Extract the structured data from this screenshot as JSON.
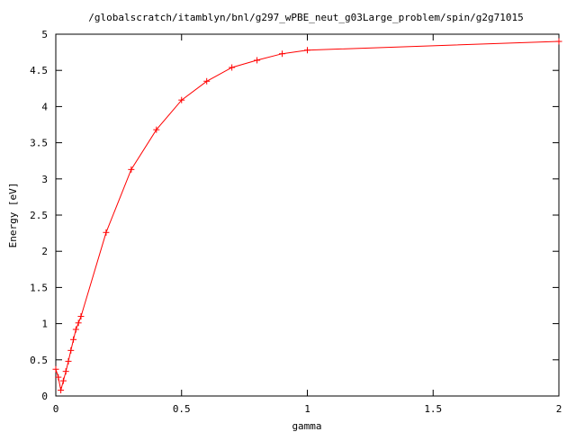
{
  "chart_data": {
    "type": "line",
    "title": "/globalscratch/itamblyn/bnl/g297_wPBE_neut_g03Large_problem/spin/g2g71015",
    "xlabel": "gamma",
    "ylabel": "Energy [eV]",
    "xlim": [
      0,
      2
    ],
    "ylim": [
      0,
      5
    ],
    "x_ticks": [
      0,
      0.5,
      1,
      1.5,
      2
    ],
    "x_tick_labels": [
      "0",
      "0.5",
      "1",
      "1.5",
      "2"
    ],
    "y_ticks": [
      0,
      0.5,
      1,
      1.5,
      2,
      2.5,
      3,
      3.5,
      4,
      4.5,
      5
    ],
    "y_tick_labels": [
      "0",
      "0.5",
      "1",
      "1.5",
      "2",
      "2.5",
      "3",
      "3.5",
      "4",
      "4.5",
      "5"
    ],
    "grid": false,
    "legend": "none",
    "series": [
      {
        "color": "#ff0000",
        "marker": "plus",
        "x": [
          0.0,
          0.01,
          0.02,
          0.03,
          0.04,
          0.05,
          0.06,
          0.07,
          0.08,
          0.09,
          0.1,
          0.2,
          0.3,
          0.4,
          0.5,
          0.6,
          0.7,
          0.8,
          0.9,
          1.0,
          2.0
        ],
        "y": [
          0.37,
          0.26,
          0.08,
          0.21,
          0.34,
          0.48,
          0.63,
          0.78,
          0.92,
          1.01,
          1.1,
          2.26,
          3.13,
          3.68,
          4.09,
          4.35,
          4.54,
          4.64,
          4.73,
          4.78,
          4.9
        ]
      }
    ]
  }
}
